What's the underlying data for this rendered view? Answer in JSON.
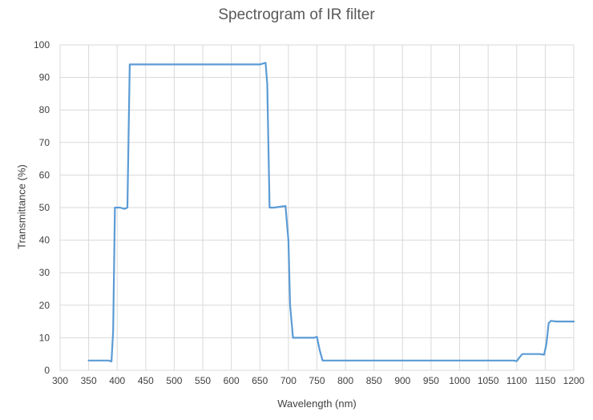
{
  "chart_data": {
    "type": "line",
    "title": "Spectrogram of IR filter",
    "xlabel": "Wavelength (nm)",
    "ylabel": "Transmittance (%)",
    "xlim": [
      300,
      1200
    ],
    "ylim": [
      0,
      100
    ],
    "xticks": [
      300,
      350,
      400,
      450,
      500,
      550,
      600,
      650,
      700,
      750,
      800,
      850,
      900,
      950,
      1000,
      1050,
      1100,
      1150,
      1200
    ],
    "yticks": [
      0,
      10,
      20,
      30,
      40,
      50,
      60,
      70,
      80,
      90,
      100
    ],
    "grid": "vertical and horizontal",
    "legend": "none",
    "series": [
      {
        "color": "#5b9bd5",
        "x": [
          350,
          385,
          390,
          393,
          396,
          405,
          413,
          418,
          422,
          430,
          600,
          650,
          660,
          663,
          667,
          675,
          695,
          700,
          703,
          708,
          713,
          720,
          745,
          750,
          755,
          760,
          770,
          1000,
          1095,
          1100,
          1105,
          1110,
          1140,
          1148,
          1152,
          1156,
          1160,
          1170,
          1200
        ],
        "y": [
          3,
          3,
          2.7,
          12,
          50,
          50,
          49.6,
          50,
          94,
          94,
          94,
          94,
          94.5,
          88,
          50,
          50,
          50.5,
          40,
          20,
          10,
          10,
          10,
          10,
          10.3,
          6,
          3,
          3,
          3,
          3,
          2.8,
          4,
          5,
          5,
          4.8,
          8,
          14.5,
          15.2,
          15,
          15
        ]
      }
    ]
  }
}
